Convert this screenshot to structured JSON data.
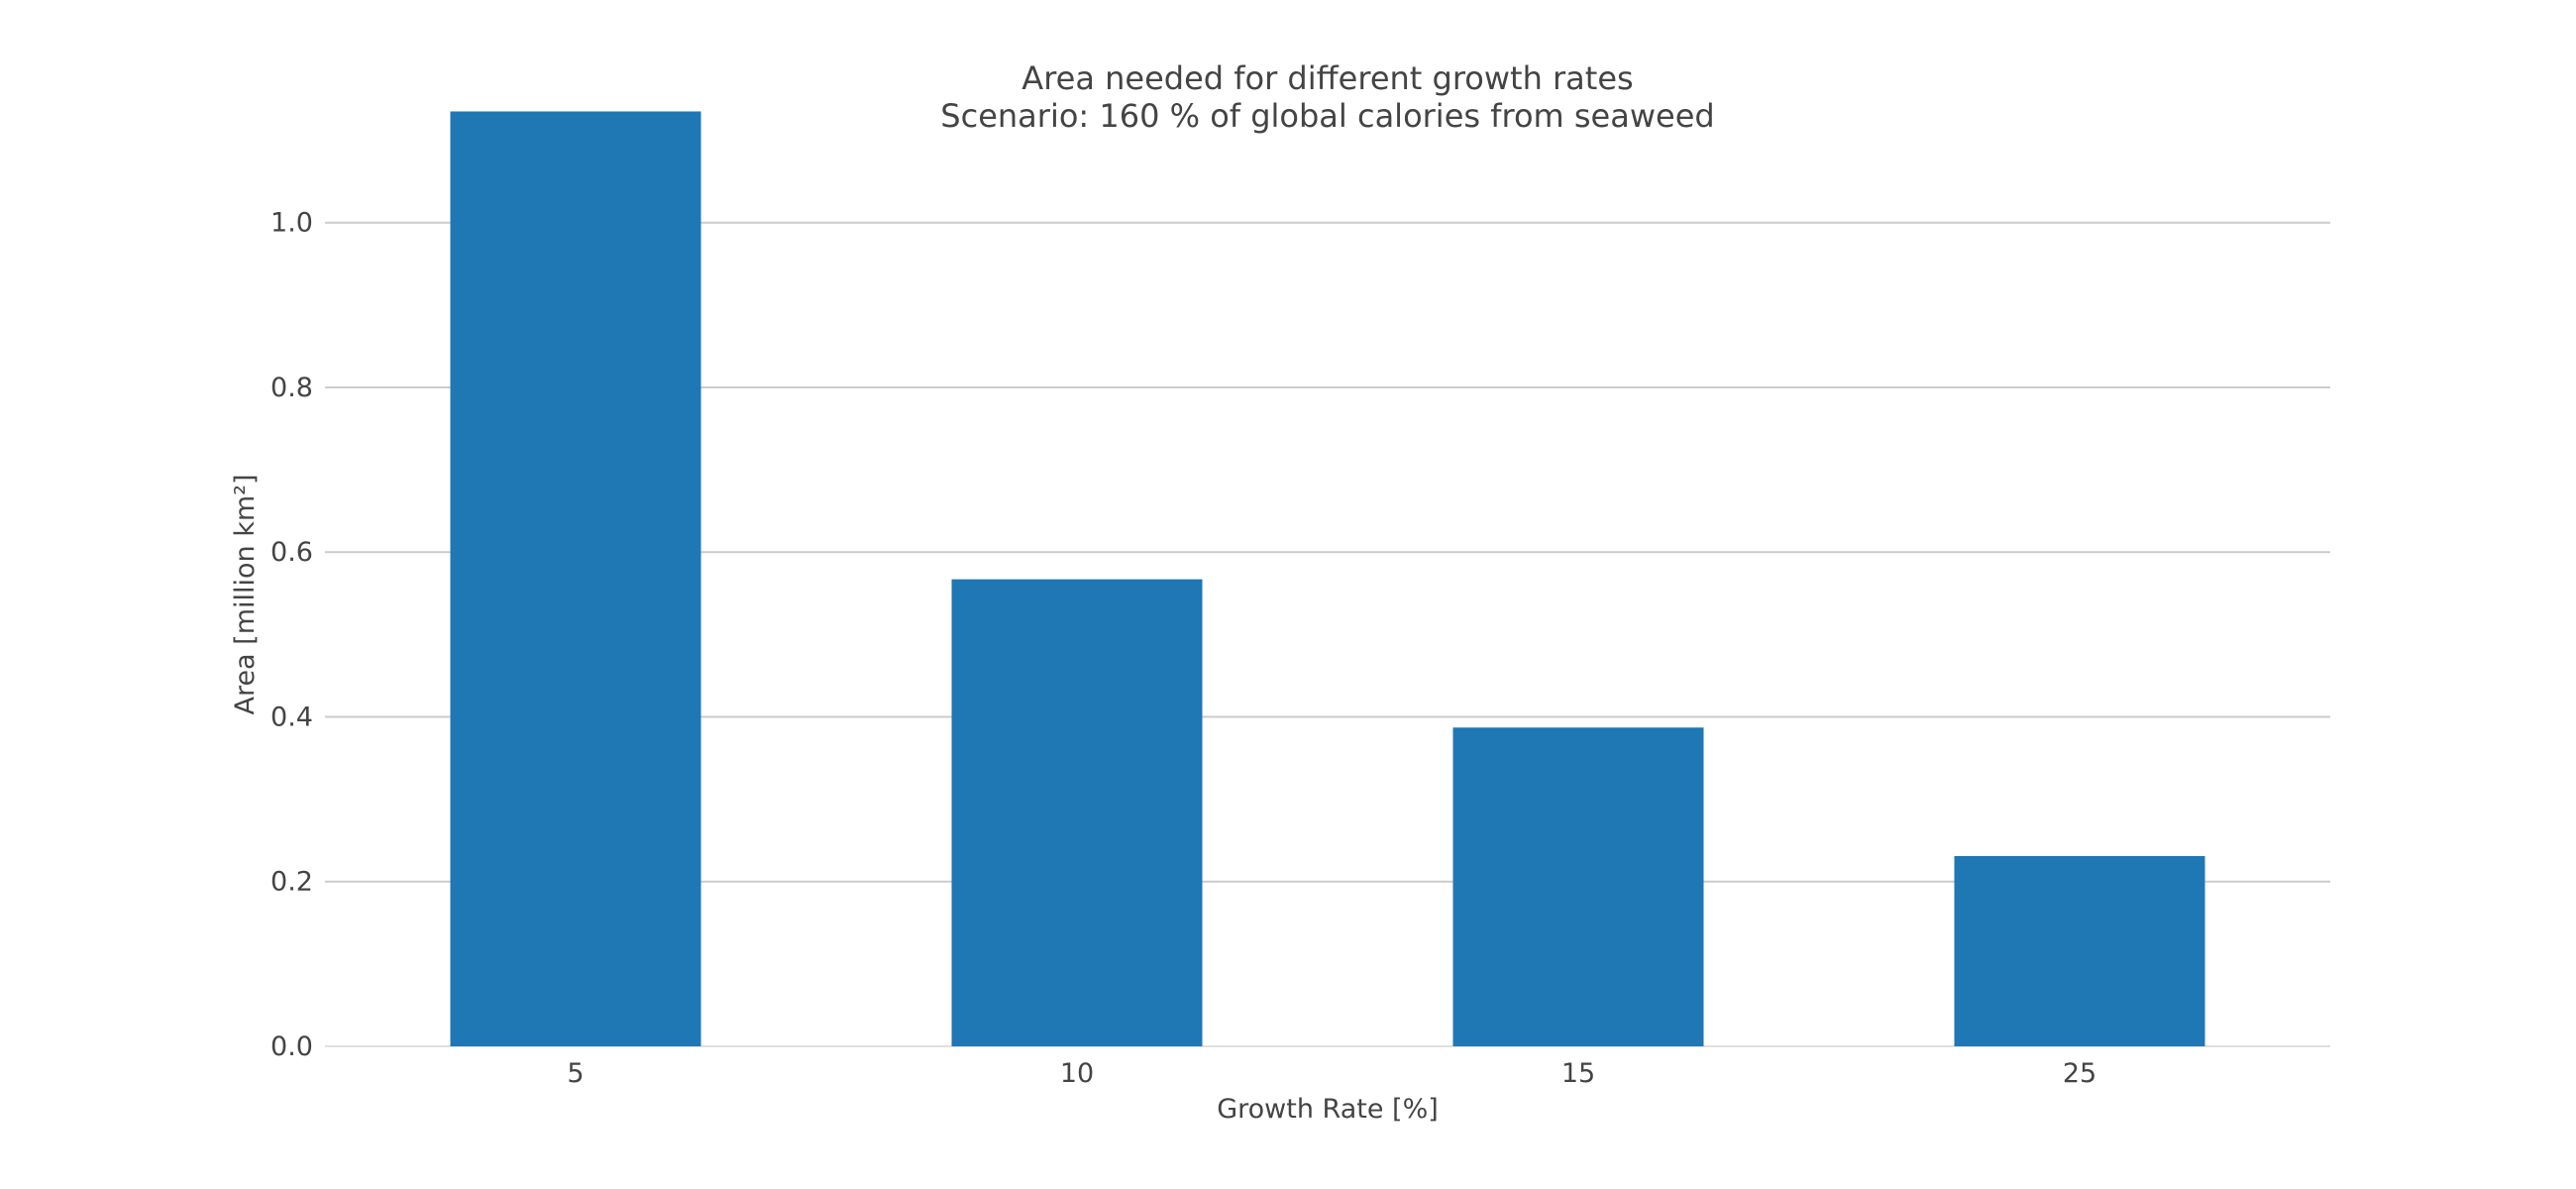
{
  "chart_data": {
    "type": "bar",
    "title": "Area needed for different growth rates",
    "subtitle": "Scenario: 160 % of global calories from seaweed",
    "xlabel": "Growth Rate [%]",
    "ylabel": "Area [million km²]",
    "categories": [
      "5",
      "10",
      "15",
      "25"
    ],
    "values": [
      1.135,
      0.567,
      0.387,
      0.231
    ],
    "ylim": [
      0,
      1.15
    ],
    "yticks": [
      "0.0",
      "0.2",
      "0.4",
      "0.6",
      "0.8",
      "1.0"
    ],
    "grid": true,
    "bar_color": "#1f77b4",
    "legend": "none"
  }
}
